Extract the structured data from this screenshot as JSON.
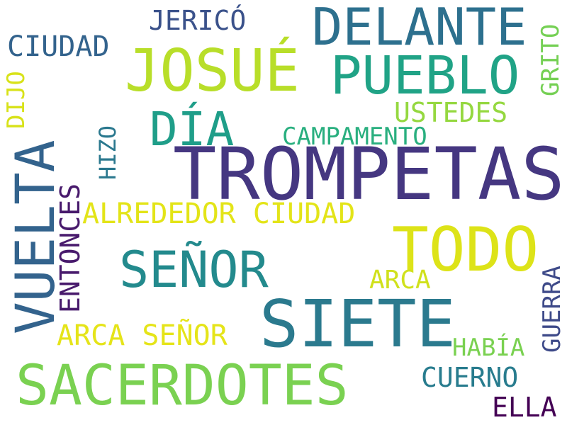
{
  "words": {
    "trompetas": {
      "text": "TROMPETAS",
      "color": "#453781"
    },
    "siete": {
      "text": "SIETE",
      "color": "#2b7a8e"
    },
    "todo": {
      "text": "TODO",
      "color": "#dde318"
    },
    "sacerdotes": {
      "text": "SACERDOTES",
      "color": "#7ad151"
    },
    "vuelta": {
      "text": "VUELTA",
      "color": "#33638d"
    },
    "josue": {
      "text": "JOSUÉ",
      "color": "#b8de29"
    },
    "delante": {
      "text": "DELANTE",
      "color": "#2d708e"
    },
    "pueblo": {
      "text": "PUEBLO",
      "color": "#20a386"
    },
    "senor": {
      "text": "SEÑOR",
      "color": "#238a8d"
    },
    "dia": {
      "text": "DÍA",
      "color": "#1f9e89"
    },
    "alrededor_ciudad": {
      "text": "ALREDEDOR CIUDAD",
      "color": "#e3e418"
    },
    "arca_senor": {
      "text": "ARCA SEÑOR",
      "color": "#e5e419"
    },
    "entonces": {
      "text": "ENTONCES",
      "color": "#481a6c"
    },
    "jerico": {
      "text": "JERICÓ",
      "color": "#3b528b"
    },
    "ciudad": {
      "text": "CIUDAD",
      "color": "#33638d"
    },
    "ustedes": {
      "text": "USTEDES",
      "color": "#95d840"
    },
    "campamento": {
      "text": "CAMPAMENTO",
      "color": "#29af7f"
    },
    "cuerno": {
      "text": "CUERNO",
      "color": "#287c8e"
    },
    "guerra": {
      "text": "GUERRA",
      "color": "#3e4a89"
    },
    "habia": {
      "text": "HABÍA",
      "color": "#7ad151"
    },
    "arca": {
      "text": "ARCA",
      "color": "#d0e11c"
    },
    "ella": {
      "text": "ELLA",
      "color": "#440154"
    },
    "hizo": {
      "text": "HIZO",
      "color": "#2a788e"
    },
    "dijo": {
      "text": "DIJO",
      "color": "#d8e219"
    },
    "grito": {
      "text": "GRITO",
      "color": "#75d054"
    }
  }
}
